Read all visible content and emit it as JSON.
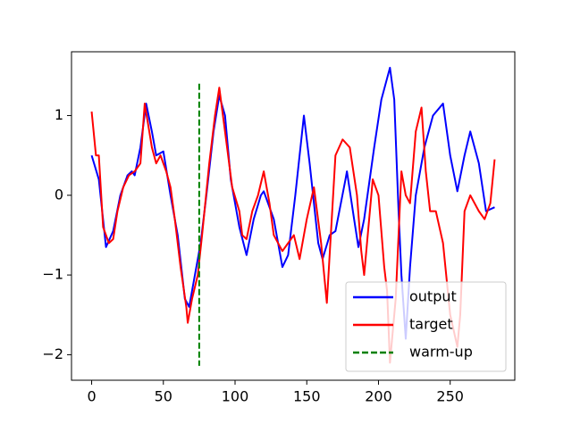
{
  "chart_data": {
    "type": "line",
    "xlim": [
      -14.05,
      295.05
    ],
    "ylim": [
      -2.32,
      1.8
    ],
    "xticks": [
      0,
      50,
      100,
      150,
      200,
      250
    ],
    "yticks": [
      {
        "value": -2,
        "label": "−2"
      },
      {
        "value": -1,
        "label": "−1"
      },
      0,
      1
    ],
    "grid": false,
    "legend": "lower right",
    "series": [
      {
        "name": "output",
        "color": "#0000ff",
        "style": "solid",
        "x": [
          0,
          5,
          10,
          15,
          20,
          25,
          28,
          30,
          34,
          38,
          42,
          45,
          50,
          55,
          60,
          65,
          68,
          72,
          76,
          80,
          85,
          89,
          93,
          97,
          103,
          108,
          113,
          118,
          120,
          127,
          133,
          137,
          142,
          148,
          152,
          158,
          161,
          166,
          170,
          177,
          178,
          183,
          186,
          190,
          197,
          202,
          208,
          211,
          214,
          216,
          219,
          222,
          226,
          232,
          238,
          245,
          250,
          255,
          260,
          264,
          270,
          275,
          281
        ],
        "values": [
          0.5,
          0.2,
          -0.65,
          -0.45,
          0.0,
          0.25,
          0.3,
          0.25,
          0.6,
          1.15,
          0.8,
          0.5,
          0.55,
          0.0,
          -0.5,
          -1.3,
          -1.4,
          -1.0,
          -0.6,
          0.0,
          0.8,
          1.25,
          1.0,
          0.2,
          -0.4,
          -0.75,
          -0.3,
          0.0,
          0.05,
          -0.3,
          -0.9,
          -0.75,
          0.0,
          1.0,
          0.4,
          -0.6,
          -0.8,
          -0.5,
          -0.45,
          0.2,
          0.3,
          -0.3,
          -0.65,
          -0.3,
          0.6,
          1.2,
          1.6,
          1.2,
          -0.2,
          -1.0,
          -1.8,
          -0.9,
          0.0,
          0.6,
          1.0,
          1.15,
          0.5,
          0.05,
          0.5,
          0.8,
          0.4,
          -0.2,
          -0.15
        ]
      },
      {
        "name": "target",
        "color": "#ff0000",
        "style": "solid",
        "x": [
          0,
          3,
          5,
          8,
          12,
          15,
          18,
          22,
          26,
          30,
          34,
          37,
          42,
          45,
          48,
          52,
          55,
          58,
          62,
          66,
          67,
          70,
          74,
          77,
          82,
          86,
          89,
          93,
          98,
          103,
          105,
          108,
          112,
          116,
          120,
          124,
          127,
          133,
          137,
          141,
          145,
          150,
          155,
          160,
          164,
          170,
          175,
          180,
          185,
          188,
          190,
          196,
          200,
          204,
          206,
          208,
          212,
          216,
          219,
          222,
          226,
          230,
          233,
          236,
          240,
          245,
          250,
          255,
          257,
          260,
          264,
          270,
          274,
          278,
          281
        ],
        "values": [
          1.05,
          0.5,
          0.5,
          -0.4,
          -0.6,
          -0.55,
          -0.2,
          0.1,
          0.25,
          0.3,
          0.4,
          1.15,
          0.6,
          0.4,
          0.5,
          0.3,
          0.1,
          -0.3,
          -0.9,
          -1.4,
          -1.6,
          -1.3,
          -1.0,
          -0.5,
          0.4,
          1.0,
          1.35,
          0.8,
          0.1,
          -0.2,
          -0.5,
          -0.55,
          -0.2,
          0.0,
          0.3,
          -0.1,
          -0.5,
          -0.7,
          -0.6,
          -0.5,
          -0.8,
          -0.3,
          0.1,
          -0.6,
          -1.35,
          0.5,
          0.7,
          0.6,
          0.0,
          -0.7,
          -1.0,
          0.2,
          0.0,
          -0.9,
          -1.2,
          -2.1,
          -1.3,
          0.3,
          0.0,
          -0.1,
          0.8,
          1.1,
          0.3,
          -0.2,
          -0.2,
          -0.6,
          -1.5,
          -1.9,
          -1.5,
          -0.2,
          0.0,
          -0.2,
          -0.3,
          -0.1,
          0.45
        ]
      },
      {
        "name": "warm-up",
        "color": "#008000",
        "style": "dashed",
        "x": [
          75,
          75
        ],
        "values": [
          1.4,
          -2.14
        ]
      }
    ]
  }
}
